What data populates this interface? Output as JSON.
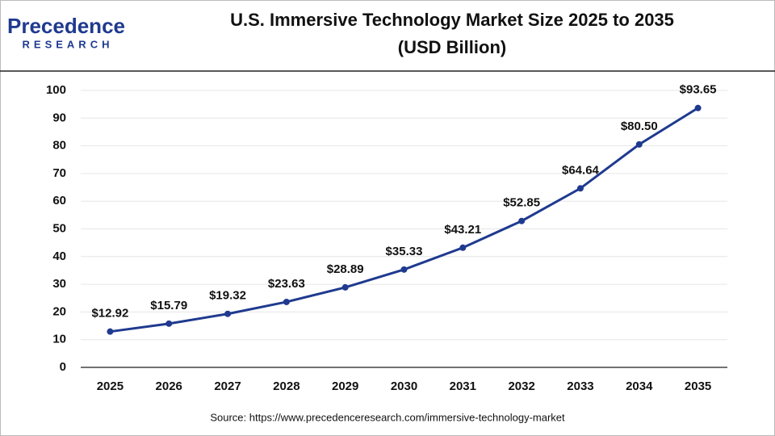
{
  "logo": {
    "name": "Precedence",
    "tagline": "RESEARCH"
  },
  "source": "Source: https://www.precedenceresearch.com/immersive-technology-market",
  "chart_data": {
    "type": "line",
    "title": "U.S. Immersive Technology Market Size 2025 to 2035",
    "subtitle": "(USD Billion)",
    "categories": [
      "2025",
      "2026",
      "2027",
      "2028",
      "2029",
      "2030",
      "2031",
      "2032",
      "2033",
      "2034",
      "2035"
    ],
    "values": [
      12.92,
      15.79,
      19.32,
      23.63,
      28.89,
      35.33,
      43.21,
      52.85,
      64.64,
      80.5,
      93.65
    ],
    "value_labels": [
      "$12.92",
      "$15.79",
      "$19.32",
      "$23.63",
      "$28.89",
      "$35.33",
      "$43.21",
      "$52.85",
      "$64.64",
      "$80.50",
      "$93.65"
    ],
    "color": "#1f3a8f",
    "ylim": [
      0,
      100
    ],
    "yticks": [
      0,
      10,
      20,
      30,
      40,
      50,
      60,
      70,
      80,
      90,
      100
    ],
    "grid": true
  }
}
